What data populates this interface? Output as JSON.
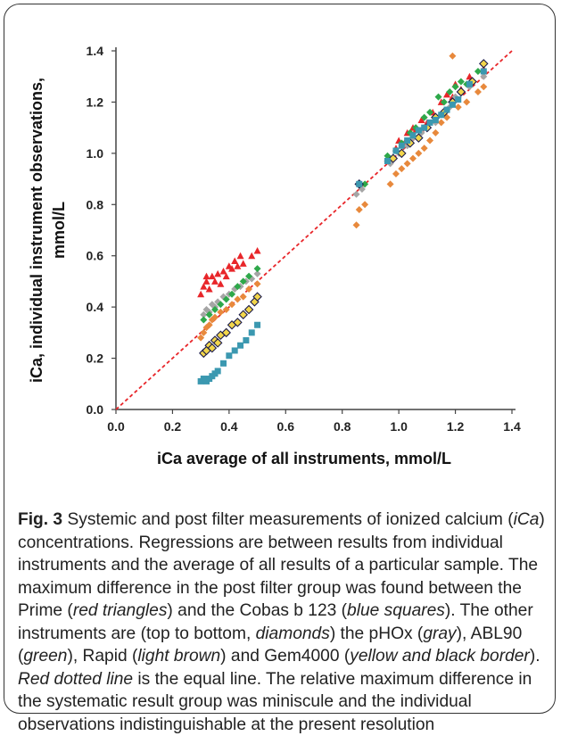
{
  "chart_data": {
    "type": "scatter",
    "title": "",
    "xlabel": "iCa average of all instruments, mmol/L",
    "ylabel_line1": "iCa, individual instrument observations,",
    "ylabel_line2": "mmol/L",
    "xlim": [
      0.0,
      1.4
    ],
    "ylim": [
      0.0,
      1.4
    ],
    "xticks": [
      "0.0",
      "0.2",
      "0.4",
      "0.6",
      "0.8",
      "1.0",
      "1.2",
      "1.4"
    ],
    "yticks": [
      "0.0",
      "0.2",
      "0.4",
      "0.6",
      "0.8",
      "1.0",
      "1.2",
      "1.4"
    ],
    "grid": false,
    "legend": "none",
    "reference_line": {
      "x": [
        0.0,
        1.4
      ],
      "y": [
        0.0,
        1.4
      ],
      "color": "#e8262a",
      "style": "dotted"
    },
    "series": [
      {
        "marker": "triangle",
        "color": "#e8262a",
        "points": [
          [
            0.3,
            0.45
          ],
          [
            0.31,
            0.48
          ],
          [
            0.32,
            0.5
          ],
          [
            0.32,
            0.52
          ],
          [
            0.33,
            0.47
          ],
          [
            0.34,
            0.52
          ],
          [
            0.35,
            0.5
          ],
          [
            0.36,
            0.53
          ],
          [
            0.37,
            0.49
          ],
          [
            0.38,
            0.54
          ],
          [
            0.39,
            0.52
          ],
          [
            0.4,
            0.56
          ],
          [
            0.41,
            0.55
          ],
          [
            0.42,
            0.58
          ],
          [
            0.43,
            0.56
          ],
          [
            0.44,
            0.6
          ],
          [
            0.45,
            0.57
          ],
          [
            0.48,
            0.6
          ],
          [
            0.5,
            0.62
          ],
          [
            0.96,
            0.98
          ],
          [
            0.99,
            1.02
          ],
          [
            1.0,
            1.05
          ],
          [
            1.02,
            1.04
          ],
          [
            1.03,
            1.08
          ],
          [
            1.05,
            1.1
          ],
          [
            1.06,
            1.09
          ],
          [
            1.08,
            1.13
          ],
          [
            1.1,
            1.12
          ],
          [
            1.12,
            1.16
          ],
          [
            1.15,
            1.2
          ],
          [
            1.17,
            1.23
          ],
          [
            1.19,
            1.22
          ],
          [
            1.2,
            1.27
          ],
          [
            1.22,
            1.25
          ],
          [
            1.25,
            1.3
          ],
          [
            1.3,
            1.33
          ]
        ]
      },
      {
        "marker": "diamond",
        "color": "#a5a5a5",
        "points": [
          [
            0.31,
            0.37
          ],
          [
            0.32,
            0.39
          ],
          [
            0.33,
            0.38
          ],
          [
            0.34,
            0.41
          ],
          [
            0.35,
            0.4
          ],
          [
            0.36,
            0.42
          ],
          [
            0.38,
            0.44
          ],
          [
            0.4,
            0.45
          ],
          [
            0.42,
            0.47
          ],
          [
            0.44,
            0.48
          ],
          [
            0.46,
            0.5
          ],
          [
            0.48,
            0.51
          ],
          [
            0.5,
            0.53
          ],
          [
            0.85,
            0.84
          ],
          [
            0.87,
            0.86
          ],
          [
            0.97,
            0.96
          ],
          [
            1.0,
            1.0
          ],
          [
            1.03,
            1.03
          ],
          [
            1.05,
            1.06
          ],
          [
            1.08,
            1.08
          ],
          [
            1.1,
            1.1
          ],
          [
            1.13,
            1.12
          ],
          [
            1.15,
            1.15
          ],
          [
            1.18,
            1.18
          ],
          [
            1.2,
            1.22
          ],
          [
            1.25,
            1.26
          ],
          [
            1.3,
            1.3
          ]
        ]
      },
      {
        "marker": "diamond",
        "color": "#2ea84a",
        "points": [
          [
            0.31,
            0.35
          ],
          [
            0.33,
            0.37
          ],
          [
            0.35,
            0.39
          ],
          [
            0.37,
            0.41
          ],
          [
            0.39,
            0.43
          ],
          [
            0.41,
            0.45
          ],
          [
            0.43,
            0.48
          ],
          [
            0.45,
            0.5
          ],
          [
            0.47,
            0.52
          ],
          [
            0.5,
            0.55
          ],
          [
            0.88,
            0.88
          ],
          [
            0.96,
            0.99
          ],
          [
            0.99,
            1.01
          ],
          [
            1.01,
            1.04
          ],
          [
            1.04,
            1.08
          ],
          [
            1.06,
            1.1
          ],
          [
            1.09,
            1.14
          ],
          [
            1.11,
            1.16
          ],
          [
            1.14,
            1.22
          ],
          [
            1.16,
            1.2
          ],
          [
            1.18,
            1.24
          ],
          [
            1.2,
            1.26
          ],
          [
            1.22,
            1.28
          ],
          [
            1.24,
            1.27
          ],
          [
            1.28,
            1.32
          ]
        ]
      },
      {
        "marker": "diamond",
        "color": "#e8893c",
        "points": [
          [
            0.3,
            0.28
          ],
          [
            0.31,
            0.3
          ],
          [
            0.32,
            0.32
          ],
          [
            0.33,
            0.33
          ],
          [
            0.34,
            0.35
          ],
          [
            0.35,
            0.36
          ],
          [
            0.37,
            0.38
          ],
          [
            0.39,
            0.39
          ],
          [
            0.41,
            0.41
          ],
          [
            0.43,
            0.43
          ],
          [
            0.45,
            0.44
          ],
          [
            0.47,
            0.47
          ],
          [
            0.5,
            0.49
          ],
          [
            0.85,
            0.72
          ],
          [
            0.86,
            0.78
          ],
          [
            0.88,
            0.8
          ],
          [
            0.97,
            0.88
          ],
          [
            0.99,
            0.92
          ],
          [
            1.01,
            0.94
          ],
          [
            1.03,
            0.96
          ],
          [
            1.05,
            0.98
          ],
          [
            1.07,
            1.0
          ],
          [
            1.09,
            1.02
          ],
          [
            1.11,
            1.05
          ],
          [
            1.13,
            1.08
          ],
          [
            1.15,
            1.12
          ],
          [
            1.17,
            1.14
          ],
          [
            1.19,
            1.38
          ],
          [
            1.21,
            1.18
          ],
          [
            1.24,
            1.2
          ],
          [
            1.28,
            1.24
          ],
          [
            1.3,
            1.26
          ]
        ]
      },
      {
        "marker": "diamond-bordered",
        "color": "#f2d64b",
        "points": [
          [
            0.31,
            0.22
          ],
          [
            0.32,
            0.23
          ],
          [
            0.33,
            0.25
          ],
          [
            0.34,
            0.24
          ],
          [
            0.35,
            0.27
          ],
          [
            0.36,
            0.26
          ],
          [
            0.37,
            0.29
          ],
          [
            0.39,
            0.3
          ],
          [
            0.41,
            0.33
          ],
          [
            0.43,
            0.34
          ],
          [
            0.45,
            0.37
          ],
          [
            0.47,
            0.39
          ],
          [
            0.49,
            0.42
          ],
          [
            0.5,
            0.44
          ],
          [
            0.86,
            0.88
          ],
          [
            0.98,
            0.98
          ],
          [
            1.01,
            1.0
          ],
          [
            1.04,
            1.04
          ],
          [
            1.07,
            1.06
          ],
          [
            1.1,
            1.1
          ],
          [
            1.13,
            1.14
          ],
          [
            1.16,
            1.16
          ],
          [
            1.19,
            1.2
          ],
          [
            1.22,
            1.24
          ],
          [
            1.26,
            1.28
          ],
          [
            1.3,
            1.35
          ]
        ]
      },
      {
        "marker": "square",
        "color": "#3b98b0",
        "points": [
          [
            0.3,
            0.11
          ],
          [
            0.31,
            0.12
          ],
          [
            0.32,
            0.11
          ],
          [
            0.33,
            0.12
          ],
          [
            0.34,
            0.13
          ],
          [
            0.35,
            0.14
          ],
          [
            0.36,
            0.15
          ],
          [
            0.38,
            0.18
          ],
          [
            0.4,
            0.21
          ],
          [
            0.42,
            0.23
          ],
          [
            0.44,
            0.25
          ],
          [
            0.46,
            0.27
          ],
          [
            0.48,
            0.3
          ],
          [
            0.5,
            0.33
          ],
          [
            0.86,
            0.88
          ],
          [
            0.96,
            0.97
          ],
          [
            0.99,
            1.01
          ],
          [
            1.01,
            1.03
          ],
          [
            1.03,
            1.05
          ],
          [
            1.05,
            1.07
          ],
          [
            1.07,
            1.09
          ],
          [
            1.09,
            1.1
          ],
          [
            1.11,
            1.12
          ],
          [
            1.13,
            1.13
          ],
          [
            1.15,
            1.15
          ],
          [
            1.17,
            1.17
          ],
          [
            1.19,
            1.19
          ],
          [
            1.21,
            1.21
          ],
          [
            1.25,
            1.27
          ],
          [
            1.3,
            1.32
          ]
        ]
      }
    ]
  },
  "caption": {
    "fig_label": "Fig. 3",
    "text_1": " Systemic and post filter measurements of ionized calcium (",
    "ica_italic": "iCa",
    "text_2": ") concentrations. Regressions are between results from individual instruments and the average of all results of a particular sample. The maximum difference in the post filter group was found between the Prime (",
    "red_triangles": "red triangles",
    "text_3": ") and the Cobas b 123 (",
    "blue_squares": "blue squares",
    "text_4": "). The other instruments are (top to bottom, ",
    "diamonds": "diamonds",
    "text_5": ") the pHOx (",
    "gray": "gray",
    "text_6": "), ABL90 (",
    "green": "green",
    "text_7": "), Rapid (",
    "light_brown": "light brown",
    "text_8": ") and Gem4000 (",
    "yellow_black": "yellow and black border",
    "text_9": "). ",
    "red_dotted_line": "Red dotted line",
    "text_10": " is the equal line. The relative maximum difference in the systematic result group was miniscule and the individual observations indistinguishable at the present resolution"
  }
}
